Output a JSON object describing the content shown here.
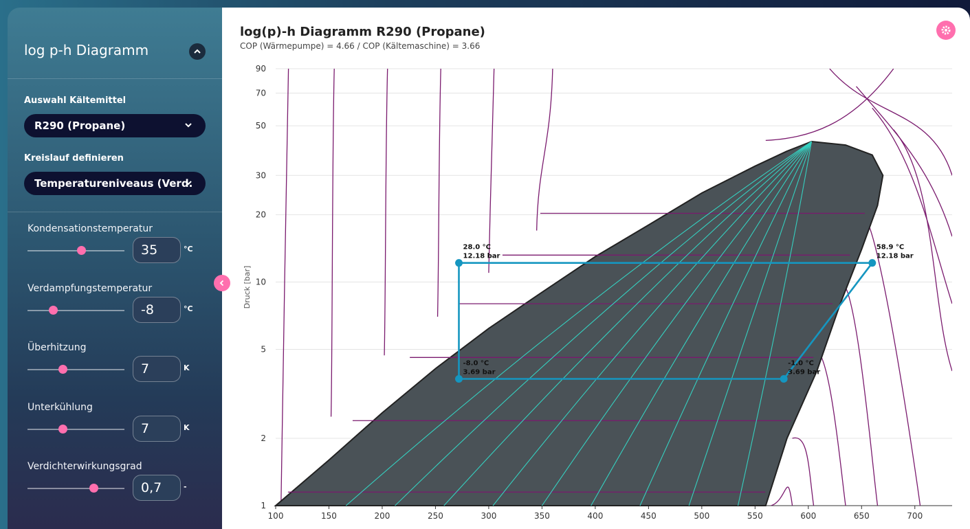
{
  "sidebar": {
    "title": "log p-h Diagramm",
    "refrigerant_label": "Auswahl Kältemittel",
    "refrigerant_value": "R290 (Propane)",
    "cycle_label": "Kreislauf definieren",
    "cycle_value": "Temperaturenivea­us (Verd.",
    "sliders": [
      {
        "label": "Kondensationstemperatur",
        "value": "35",
        "unit": "°C",
        "fraction": 0.55
      },
      {
        "label": "Verdampfungstemperatur",
        "value": "-8",
        "unit": "°C",
        "fraction": 0.26
      },
      {
        "label": "Überhitzung",
        "value": "7",
        "unit": "K",
        "fraction": 0.36
      },
      {
        "label": "Unterkühlung",
        "value": "7",
        "unit": "K",
        "fraction": 0.36
      },
      {
        "label": "Verdichterwirkungsgrad",
        "value": "0,7",
        "unit": "-",
        "fraction": 0.68
      }
    ]
  },
  "header": {
    "title": "log(p)-h Diagramm R290 (Propane)",
    "subtitle": "COP (Wärmepumpe) = 4.66 / COP (Kältemaschine) = 3.66"
  },
  "colors": {
    "accent": "#ff6fae",
    "cycle": "#1596c0",
    "dome": "#4a5257",
    "quality_lines": "#35d0c0",
    "isotherms": "#7a1a6e"
  },
  "chart_data": {
    "type": "line",
    "title": "log(p)-h Diagramm R290 (Propane)",
    "xlabel": "",
    "ylabel": "Druck [bar]",
    "xlim": [
      100,
      735
    ],
    "ylim": [
      1,
      90
    ],
    "log_y": true,
    "x_ticks": [
      100,
      150,
      200,
      250,
      300,
      350,
      400,
      450,
      500,
      550,
      600,
      650,
      700
    ],
    "y_ticks": [
      1,
      2,
      5,
      10,
      20,
      30,
      50,
      70,
      90
    ],
    "grid": true,
    "saturation_dome": {
      "liquid": [
        [
          100,
          1.0
        ],
        [
          150,
          1.6
        ],
        [
          200,
          2.6
        ],
        [
          250,
          4.1
        ],
        [
          300,
          6.2
        ],
        [
          350,
          9.0
        ],
        [
          400,
          13.0
        ],
        [
          450,
          18.0
        ],
        [
          500,
          25.0
        ],
        [
          550,
          33.0
        ],
        [
          580,
          38.5
        ],
        [
          603,
          42.5
        ]
      ],
      "vapor": [
        [
          603,
          42.5
        ],
        [
          635,
          41.0
        ],
        [
          660,
          37.0
        ],
        [
          670,
          30.0
        ],
        [
          665,
          22.0
        ],
        [
          650,
          14.0
        ],
        [
          630,
          8.0
        ],
        [
          608,
          4.0
        ],
        [
          580,
          2.0
        ],
        [
          560,
          1.0
        ]
      ]
    },
    "cycle_points": [
      {
        "label": "28.0 °C",
        "pressure_label": "12.18 bar",
        "h": 272,
        "p": 12.18
      },
      {
        "label": "58.9 °C",
        "pressure_label": "12.18 bar",
        "h": 660,
        "p": 12.18
      },
      {
        "label": "-1.0 °C",
        "pressure_label": "3.69 bar",
        "h": 577,
        "p": 3.69
      },
      {
        "label": "-8.0 °C",
        "pressure_label": "3.69 bar",
        "h": 272,
        "p": 3.69
      }
    ]
  }
}
